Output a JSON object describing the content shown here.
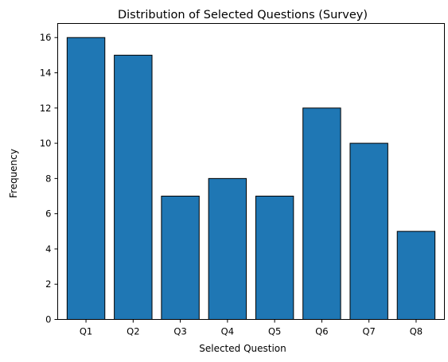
{
  "chart_data": {
    "type": "bar",
    "title": "Distribution of Selected Questions (Survey)",
    "xlabel": "Selected Question",
    "ylabel": "Frequency",
    "categories": [
      "Q1",
      "Q2",
      "Q3",
      "Q4",
      "Q5",
      "Q6",
      "Q7",
      "Q8"
    ],
    "values": [
      16,
      15,
      7,
      8,
      7,
      12,
      10,
      5
    ],
    "ylim": [
      0,
      16.8
    ],
    "yticks": [
      0,
      2,
      4,
      6,
      8,
      10,
      12,
      14,
      16
    ],
    "bar_color": "#1f77b4",
    "edge_color": "#000000",
    "grid": false,
    "legend": false
  }
}
